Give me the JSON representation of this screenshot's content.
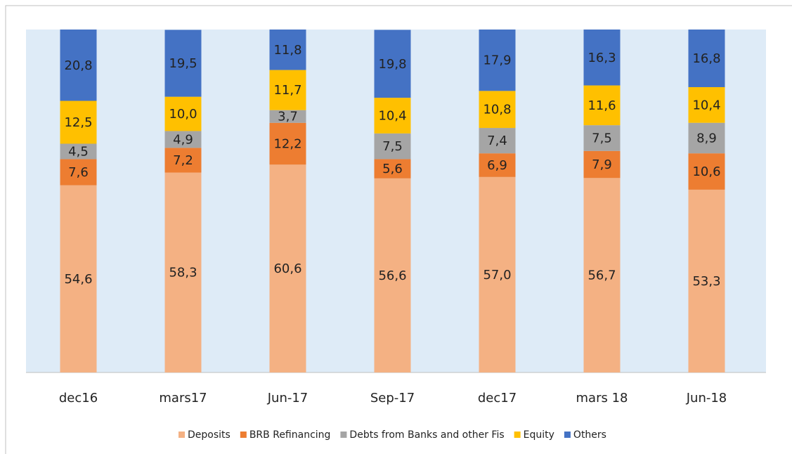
{
  "chart_data": {
    "type": "stacked_bar",
    "categories": [
      "dec16",
      "mars17",
      "Jun-17",
      "Sep-17",
      "dec17",
      "mars 18",
      "Jun-18"
    ],
    "ylim": [
      0,
      100
    ],
    "background": "#deebf7",
    "legend": "bottom",
    "series": [
      {
        "name": "Deposits",
        "color": "#f4b183",
        "values": [
          54.6,
          58.3,
          60.6,
          56.6,
          57.0,
          56.7,
          53.3
        ],
        "value_labels": [
          "54,6",
          "58,3",
          "60,6",
          "56,6",
          "57,0",
          "56,7",
          "53,3"
        ]
      },
      {
        "name": "BRB Refinancing",
        "color": "#ed7d31",
        "values": [
          7.6,
          7.2,
          12.2,
          5.6,
          6.9,
          7.9,
          10.6
        ],
        "value_labels": [
          "7,6",
          "7,2",
          "12,2",
          "5,6",
          "6,9",
          "7,9",
          "10,6"
        ]
      },
      {
        "name": "Debts from Banks and other Fis",
        "color": "#a5a5a5",
        "values": [
          4.5,
          4.9,
          3.7,
          7.5,
          7.4,
          7.5,
          8.9
        ],
        "value_labels": [
          "4,5",
          "4,9",
          "3,7",
          "7,5",
          "7,4",
          "7,5",
          "8,9"
        ]
      },
      {
        "name": "Equity",
        "color": "#ffc000",
        "values": [
          12.5,
          10.0,
          11.7,
          10.4,
          10.8,
          11.6,
          10.4
        ],
        "value_labels": [
          "12,5",
          "10,0",
          "11,7",
          "10,4",
          "10,8",
          "11,6",
          "10,4"
        ]
      },
      {
        "name": "Others",
        "color": "#4472c4",
        "values": [
          20.8,
          19.5,
          11.8,
          19.8,
          17.9,
          16.3,
          16.8
        ],
        "value_labels": [
          "20,8",
          "19,5",
          "11,8",
          "19,8",
          "17,9",
          "16,3",
          "16,8"
        ]
      }
    ]
  }
}
